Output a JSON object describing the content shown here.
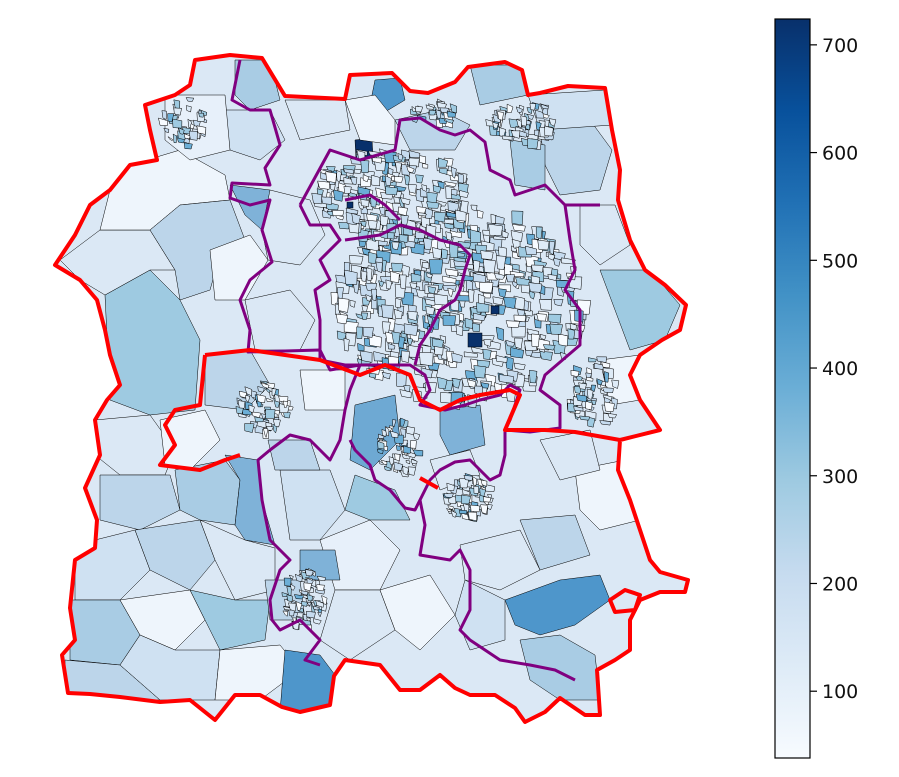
{
  "colorbar": {
    "ticks": [
      {
        "value": 100,
        "label": "100"
      },
      {
        "value": 200,
        "label": "200"
      },
      {
        "value": 300,
        "label": "300"
      },
      {
        "value": 400,
        "label": "400"
      },
      {
        "value": 500,
        "label": "500"
      },
      {
        "value": 600,
        "label": "600"
      },
      {
        "value": 700,
        "label": "700"
      }
    ],
    "range": [
      38,
      724
    ],
    "colormap": "Blues",
    "stops": [
      "#f7fbff",
      "#deebf7",
      "#c6dbef",
      "#9ecae1",
      "#6baed6",
      "#4292c6",
      "#2171b5",
      "#08519c",
      "#08306b"
    ]
  },
  "map": {
    "outer_boundary_color": "#ff0000",
    "inner_boundary_color": "#800080",
    "polygon_edge_color": "#000000"
  }
}
